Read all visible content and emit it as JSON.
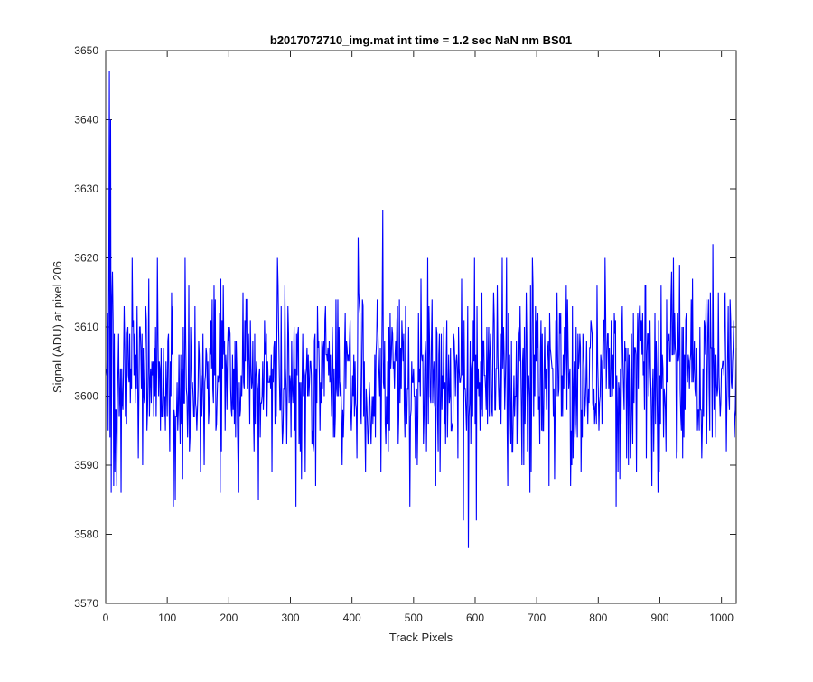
{
  "chart_data": {
    "type": "line",
    "title": "b2017072710_img.mat int time = 1.2 sec  NaN nm BS01",
    "xlabel": "Track Pixels",
    "ylabel": "Signal (ADU) at pixel 206",
    "xlim": [
      0,
      1024
    ],
    "ylim": [
      3570,
      3650
    ],
    "xticks": [
      0,
      100,
      200,
      300,
      400,
      500,
      600,
      700,
      800,
      900,
      1000
    ],
    "yticks": [
      3570,
      3580,
      3590,
      3600,
      3610,
      3620,
      3630,
      3640,
      3650
    ],
    "grid": false,
    "box": true,
    "line_color": "#0000ff",
    "series": [
      {
        "noise": {
          "n_points": 1024,
          "mean": 3603,
          "std": 6.5,
          "min": 3578,
          "max": 3647
        },
        "notable_points": [
          {
            "x": 1,
            "y": 3604
          },
          {
            "x": 3,
            "y": 3612
          },
          {
            "x": 5,
            "y": 3616
          },
          {
            "x": 6,
            "y": 3647
          },
          {
            "x": 7,
            "y": 3594
          },
          {
            "x": 8,
            "y": 3640
          },
          {
            "x": 9,
            "y": 3586
          },
          {
            "x": 11,
            "y": 3618
          },
          {
            "x": 13,
            "y": 3587
          },
          {
            "x": 18,
            "y": 3587
          },
          {
            "x": 110,
            "y": 3584
          },
          {
            "x": 113,
            "y": 3585
          },
          {
            "x": 248,
            "y": 3585
          },
          {
            "x": 309,
            "y": 3584
          },
          {
            "x": 410,
            "y": 3623
          },
          {
            "x": 450,
            "y": 3627
          },
          {
            "x": 494,
            "y": 3584
          },
          {
            "x": 581,
            "y": 3582
          },
          {
            "x": 589,
            "y": 3578
          },
          {
            "x": 602,
            "y": 3582
          },
          {
            "x": 829,
            "y": 3584
          },
          {
            "x": 986,
            "y": 3622
          }
        ]
      }
    ]
  }
}
